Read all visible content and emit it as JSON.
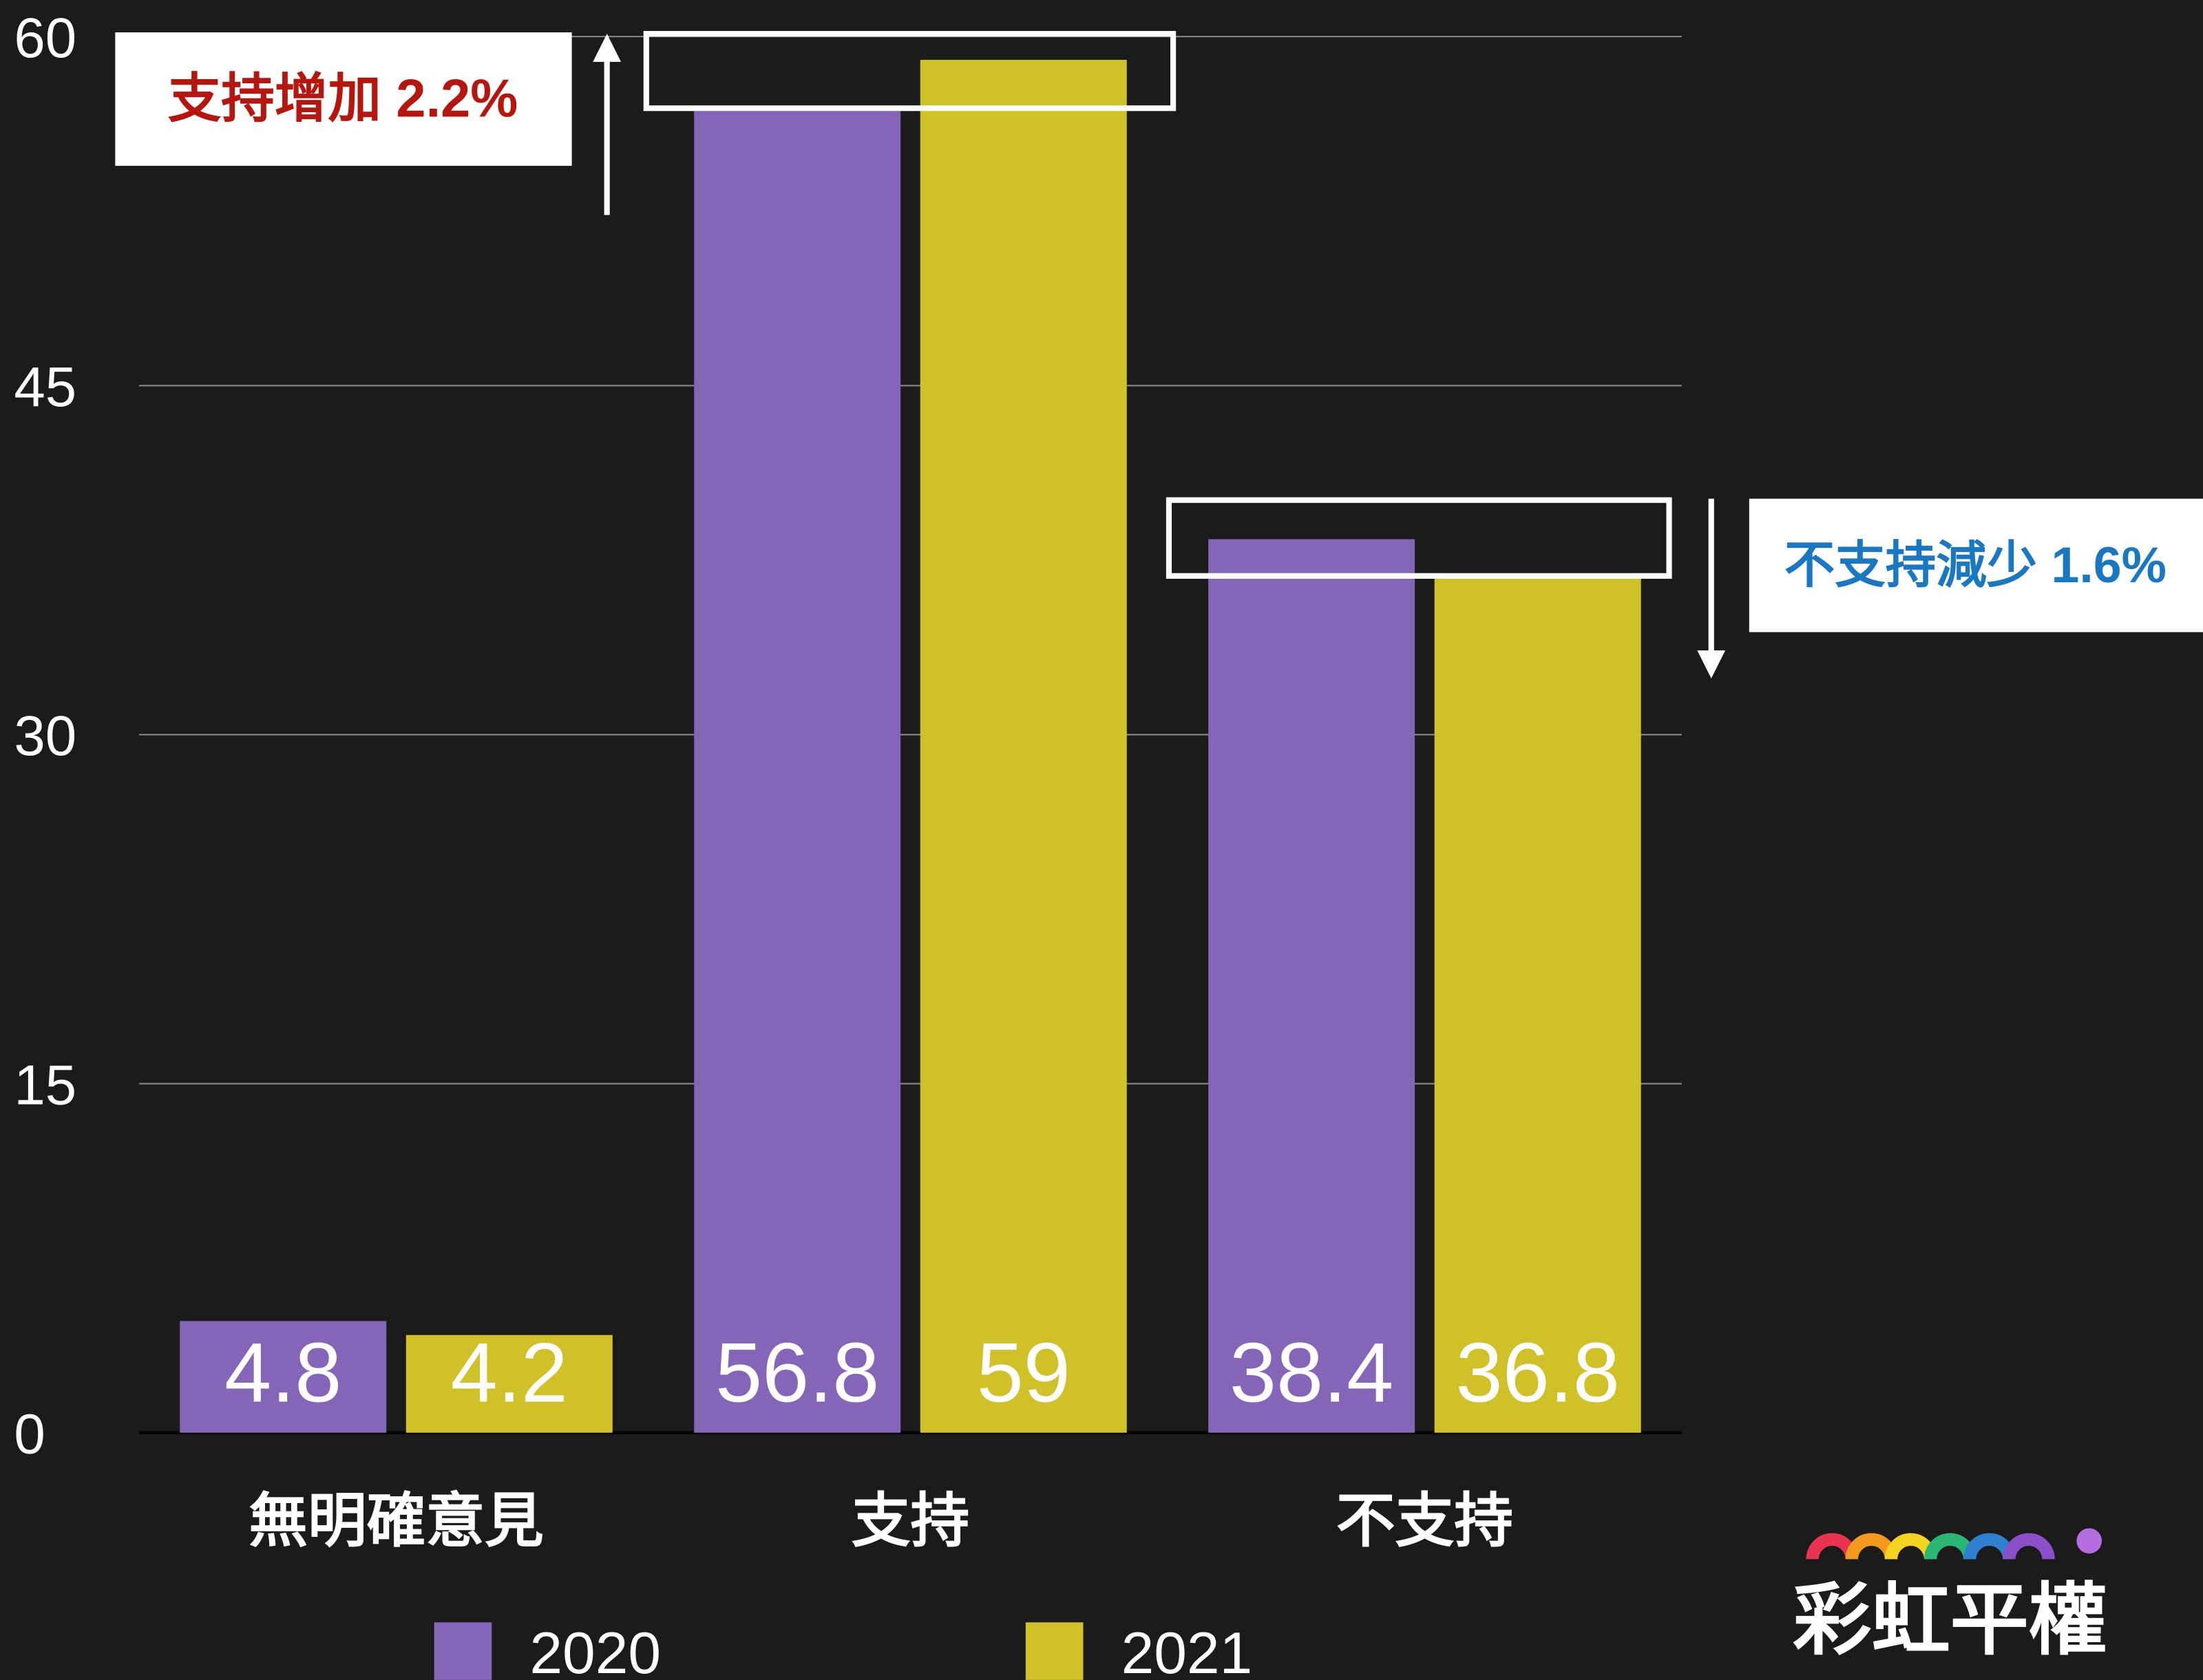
{
  "chart_data": {
    "type": "bar",
    "categories": [
      "無明確意見",
      "支持",
      "不支持"
    ],
    "series": [
      {
        "name": "2020",
        "color": "#8565b8",
        "values": [
          4.8,
          56.8,
          38.4
        ]
      },
      {
        "name": "2021",
        "color": "#d1c128",
        "values": [
          4.2,
          59,
          36.8
        ]
      }
    ],
    "ylim": [
      0,
      60
    ],
    "yticks": [
      0,
      15,
      30,
      45,
      60
    ],
    "grid": true,
    "annotations": [
      "支持增加 2.2%",
      "不支持減少 1.6%"
    ],
    "logo": "彩虹平權"
  }
}
